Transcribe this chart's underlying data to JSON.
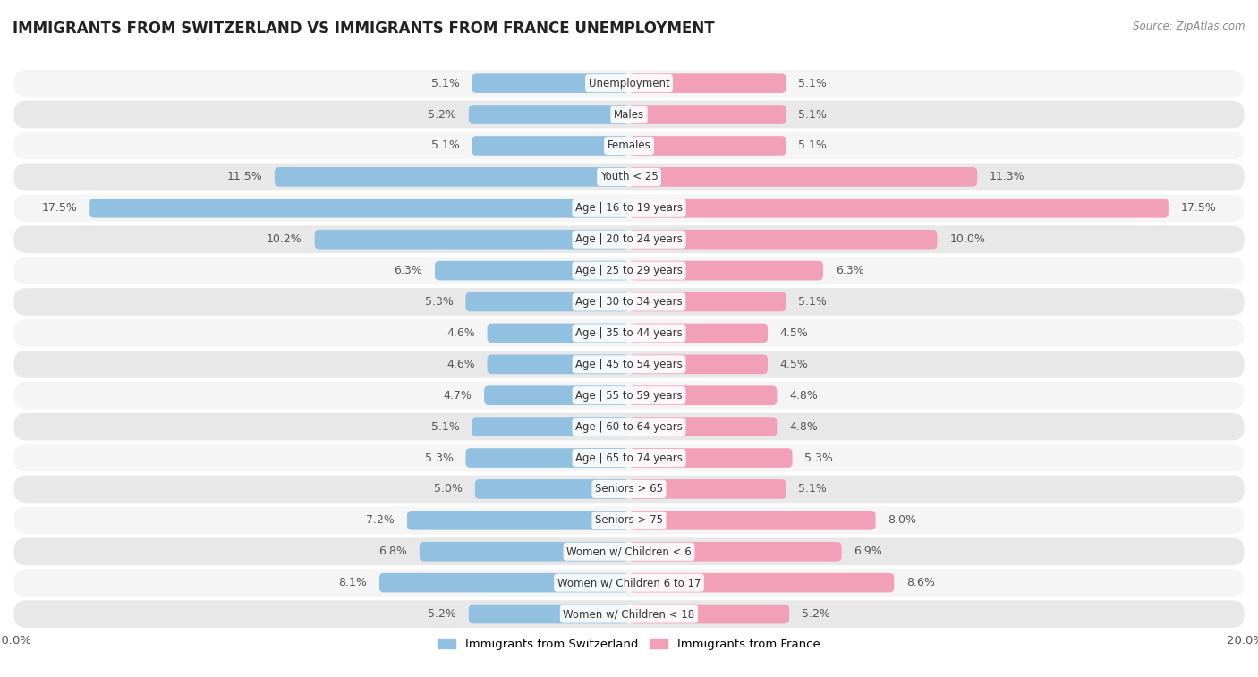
{
  "title": "IMMIGRANTS FROM SWITZERLAND VS IMMIGRANTS FROM FRANCE UNEMPLOYMENT",
  "source": "Source: ZipAtlas.com",
  "categories": [
    "Unemployment",
    "Males",
    "Females",
    "Youth < 25",
    "Age | 16 to 19 years",
    "Age | 20 to 24 years",
    "Age | 25 to 29 years",
    "Age | 30 to 34 years",
    "Age | 35 to 44 years",
    "Age | 45 to 54 years",
    "Age | 55 to 59 years",
    "Age | 60 to 64 years",
    "Age | 65 to 74 years",
    "Seniors > 65",
    "Seniors > 75",
    "Women w/ Children < 6",
    "Women w/ Children 6 to 17",
    "Women w/ Children < 18"
  ],
  "switzerland_values": [
    5.1,
    5.2,
    5.1,
    11.5,
    17.5,
    10.2,
    6.3,
    5.3,
    4.6,
    4.6,
    4.7,
    5.1,
    5.3,
    5.0,
    7.2,
    6.8,
    8.1,
    5.2
  ],
  "france_values": [
    5.1,
    5.1,
    5.1,
    11.3,
    17.5,
    10.0,
    6.3,
    5.1,
    4.5,
    4.5,
    4.8,
    4.8,
    5.3,
    5.1,
    8.0,
    6.9,
    8.6,
    5.2
  ],
  "switzerland_color": "#92C0E0",
  "france_color": "#F2A0B8",
  "switzerland_color_dark": "#5B9EC9",
  "france_color_dark": "#E87899",
  "label_switzerland": "Immigrants from Switzerland",
  "label_france": "Immigrants from France",
  "xlim": 20.0,
  "page_bg": "#FFFFFF",
  "row_bg_light": "#F5F5F5",
  "row_bg_dark": "#E8E8E8",
  "title_fontsize": 12,
  "bar_height": 0.62,
  "value_fontsize": 9,
  "label_fontsize": 8.5
}
